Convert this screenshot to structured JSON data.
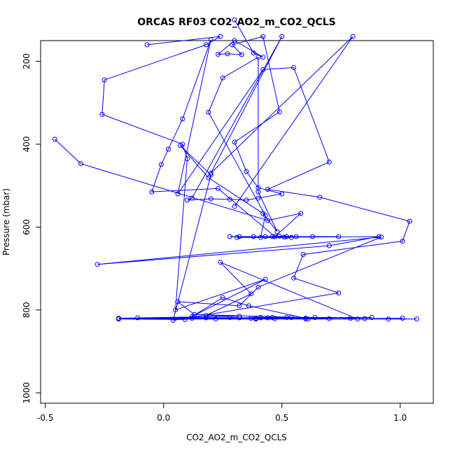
{
  "chart_data": {
    "type": "line",
    "title": "ORCAS RF03 CO2_AO2_m_CO2_QCLS",
    "xlabel": "CO2_AO2_m_CO2_QCLS",
    "ylabel": "Pressure (mbar)",
    "xlim": [
      -0.52,
      1.14
    ],
    "ylim": [
      1025,
      150
    ],
    "y_inverted": true,
    "grid": false,
    "legend": "none",
    "x_ticks": [
      -0.5,
      0.0,
      0.5,
      1.0
    ],
    "x_tick_labels": [
      "-0.5",
      "0.0",
      "0.5",
      "1.0"
    ],
    "y_ticks": [
      200,
      400,
      600,
      800,
      1000
    ],
    "y_tick_labels": [
      "200",
      "400",
      "600",
      "800",
      "1000"
    ],
    "color": "#0000ff",
    "series": [
      {
        "points": [
          [
            -0.46,
            388
          ],
          [
            -0.35,
            447
          ],
          [
            0.44,
            584
          ],
          [
            0.58,
            567
          ],
          [
            0.47,
            623
          ],
          [
            0.23,
            507
          ],
          [
            -0.05,
            515
          ],
          [
            -0.01,
            449
          ],
          [
            0.02,
            412
          ],
          [
            0.08,
            339
          ],
          [
            0.2,
            148
          ],
          [
            0.06,
            520
          ],
          [
            0.42,
            220
          ],
          [
            0.55,
            215
          ],
          [
            0.7,
            443
          ],
          [
            0.44,
            509
          ],
          [
            0.66,
            528
          ],
          [
            1.04,
            586
          ],
          [
            1.01,
            634
          ],
          [
            0.59,
            666
          ],
          [
            0.55,
            723
          ],
          [
            0.74,
            759
          ],
          [
            0.04,
            825
          ],
          [
            0.2,
            474
          ],
          [
            0.07,
            403
          ],
          [
            0.19,
            481
          ],
          [
            0.42,
            567
          ],
          [
            0.48,
            611
          ],
          [
            0.4,
            515
          ],
          [
            0.4,
            190
          ],
          [
            0.25,
            240
          ],
          [
            0.19,
            323
          ],
          [
            0.43,
            572
          ],
          [
            0.41,
            625
          ],
          [
            0.28,
            623
          ],
          [
            0.43,
            623
          ],
          [
            0.52,
            623
          ],
          [
            0.63,
            623
          ],
          [
            0.74,
            623
          ],
          [
            0.32,
            623
          ],
          [
            0.38,
            623
          ],
          [
            0.46,
            623
          ],
          [
            0.49,
            622
          ],
          [
            0.56,
            623
          ],
          [
            0.51,
            624
          ],
          [
            0.54,
            625
          ],
          [
            0.31,
            625
          ],
          [
            0.91,
            623
          ],
          [
            0.7,
            645
          ],
          [
            -0.28,
            690
          ],
          [
            0.92,
            624
          ],
          [
            0.4,
            745
          ],
          [
            0.32,
            790
          ],
          [
            0.06,
            780
          ],
          [
            0.13,
            811
          ],
          [
            0.82,
            822
          ],
          [
            0.24,
            685
          ],
          [
            0.37,
            761
          ],
          [
            0.18,
            813
          ],
          [
            0.32,
            815
          ],
          [
            -0.19,
            820
          ],
          [
            0.95,
            822
          ],
          [
            -0.11,
            819
          ],
          [
            0.88,
            818
          ],
          [
            0.52,
            818
          ],
          [
            0.46,
            818
          ],
          [
            0.41,
            818
          ],
          [
            0.32,
            819
          ],
          [
            1.07,
            822
          ],
          [
            -0.19,
            822
          ],
          [
            0.09,
            823
          ],
          [
            0.12,
            820
          ],
          [
            0.18,
            819
          ],
          [
            0.22,
            822
          ],
          [
            0.28,
            818
          ],
          [
            0.37,
            820
          ],
          [
            0.39,
            820
          ],
          [
            0.41,
            819
          ],
          [
            0.44,
            819
          ],
          [
            0.47,
            821
          ],
          [
            0.54,
            818
          ],
          [
            0.6,
            821
          ],
          [
            0.64,
            818
          ],
          [
            0.7,
            821
          ],
          [
            0.79,
            820
          ],
          [
            0.85,
            821
          ],
          [
            1.01,
            820
          ],
          [
            0.61,
            822
          ],
          [
            0.39,
            822
          ]
        ]
      },
      {
        "points": [
          [
            0.3,
            100
          ],
          [
            0.38,
            180
          ],
          [
            0.42,
            190
          ],
          [
            0.3,
            150
          ],
          [
            0.23,
            183
          ],
          [
            0.27,
            182
          ],
          [
            0.33,
            184
          ],
          [
            0.29,
            160
          ],
          [
            0.42,
            140
          ],
          [
            0.49,
            322
          ],
          [
            0.3,
            395
          ],
          [
            0.35,
            466
          ],
          [
            0.4,
            505
          ],
          [
            0.5,
            520
          ],
          [
            0.4,
            530
          ],
          [
            0.35,
            535
          ],
          [
            0.28,
            533
          ],
          [
            0.2,
            532
          ],
          [
            0.1,
            535
          ],
          [
            0.12,
            530
          ],
          [
            0.5,
            140
          ],
          [
            0.2,
            470
          ],
          [
            0.8,
            140
          ],
          [
            0.3,
            550
          ]
        ]
      },
      {
        "points": [
          [
            -0.07,
            160
          ],
          [
            0.24,
            140
          ],
          [
            0.18,
            160
          ],
          [
            -0.25,
            245
          ],
          [
            -0.26,
            328
          ],
          [
            0.08,
            400
          ],
          [
            0.1,
            435
          ],
          [
            0.05,
            800
          ],
          [
            0.43,
            726
          ],
          [
            0.12,
            816
          ],
          [
            0.25,
            770
          ],
          [
            0.36,
            790
          ],
          [
            0.6,
            820
          ]
        ]
      }
    ]
  }
}
